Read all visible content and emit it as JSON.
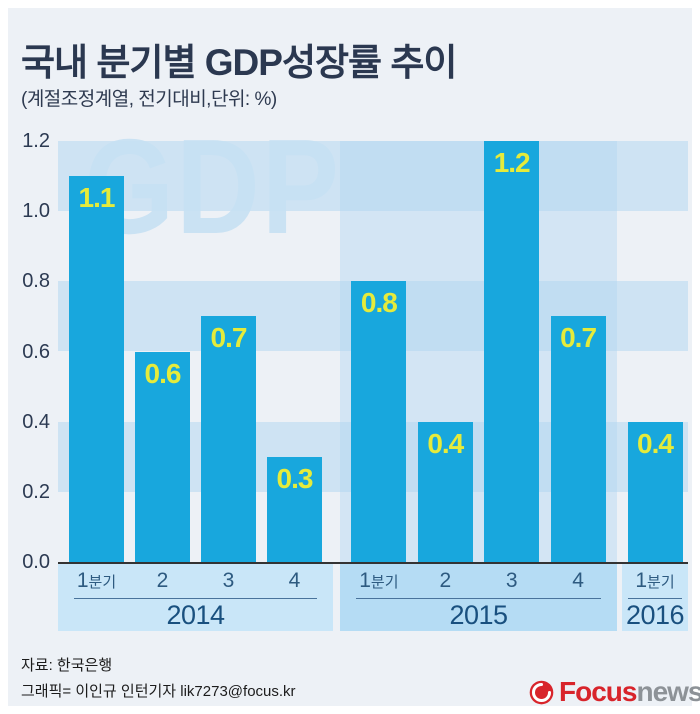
{
  "header": {
    "title": "국내 분기별 GDP성장률 추이",
    "subtitle": "(계절조정계열, 전기대비,단위: %)"
  },
  "chart_data": {
    "type": "bar",
    "title": "국내 분기별 GDP성장률 추이",
    "unit_note": "계절조정계열, 전기대비, 단위: %",
    "watermark": "GDP",
    "ylim": [
      0,
      1.2
    ],
    "ytick_labels": [
      "1.2",
      "1.0",
      "0.8",
      "0.6",
      "0.4",
      "0.2",
      "0.0"
    ],
    "grid": "horizontal-stripes",
    "legend": "none",
    "groups": [
      {
        "year": "2014",
        "quarters": [
          "1분기",
          "2",
          "3",
          "4"
        ],
        "values": [
          1.1,
          0.6,
          0.7,
          0.3
        ],
        "highlighted": false
      },
      {
        "year": "2015",
        "quarters": [
          "1분기",
          "2",
          "3",
          "4"
        ],
        "values": [
          0.8,
          0.4,
          1.2,
          0.7
        ],
        "highlighted": true
      },
      {
        "year": "2016",
        "quarters": [
          "1분기"
        ],
        "values": [
          0.4
        ],
        "highlighted": false
      }
    ],
    "colors": {
      "bar": "#18a7dd",
      "value_label": "#e5eb3b",
      "stripe": "#d3e5f3",
      "panel": "#edf1f6",
      "year_band": "#c9e6f8",
      "year_band_highlight": "#b5dcf4"
    }
  },
  "footer": {
    "source": "자료: 한국은행",
    "credit": "그래픽= 이인규 인턴기자 lik7273@focus.kr",
    "logo": {
      "brand": "Focus",
      "suffix": "news",
      "brand_color": "#d8242b",
      "suffix_color": "#8d9297"
    }
  }
}
